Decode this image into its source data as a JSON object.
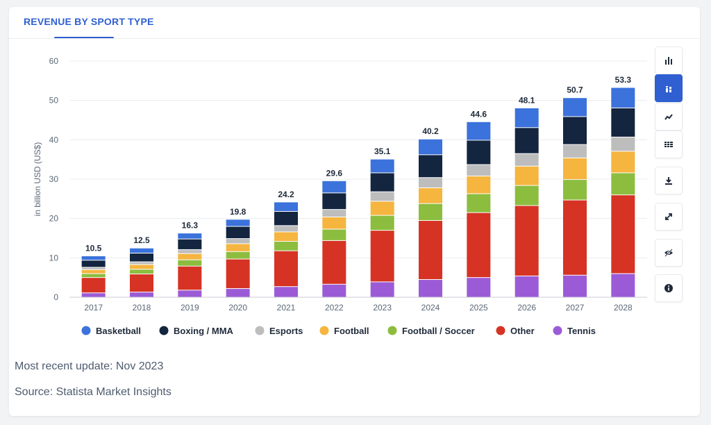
{
  "header": {
    "title": "REVENUE BY SPORT TYPE"
  },
  "footer": {
    "update": "Most recent update: Nov 2023",
    "source": "Source: Statista Market Insights"
  },
  "toolbar": {
    "icons": [
      "bar-chart-icon",
      "stacked-bar-icon",
      "line-chart-icon",
      "table-icon",
      "download-icon",
      "expand-icon",
      "hide-icon",
      "info-icon"
    ],
    "accent": "#2f5fd0"
  },
  "chart_data": {
    "type": "bar",
    "stacked": true,
    "title": "REVENUE BY SPORT TYPE",
    "ylabel": "in billion USD (US$)",
    "xlabel": "",
    "ylim": [
      0,
      60
    ],
    "yticks": [
      0,
      10,
      20,
      30,
      40,
      50,
      60
    ],
    "grid": true,
    "legend_position": "bottom",
    "categories": [
      "2017",
      "2018",
      "2019",
      "2020",
      "2021",
      "2022",
      "2023",
      "2024",
      "2025",
      "2026",
      "2027",
      "2028"
    ],
    "totals": [
      "10.5",
      "12.5",
      "16.3",
      "19.8",
      "24.2",
      "29.6",
      "35.1",
      "40.2",
      "44.6",
      "48.1",
      "50.7",
      "53.3"
    ],
    "series": [
      {
        "name": "Tennis",
        "color": "#9c5bd6",
        "values": [
          1.1,
          1.3,
          1.8,
          2.2,
          2.7,
          3.3,
          3.9,
          4.5,
          5.0,
          5.4,
          5.6,
          6.0
        ]
      },
      {
        "name": "Other",
        "color": "#d63324",
        "values": [
          3.9,
          4.6,
          6.1,
          7.5,
          9.1,
          11.1,
          13.1,
          15.0,
          16.5,
          17.9,
          19.1,
          20.0
        ]
      },
      {
        "name": "Football / Soccer",
        "color": "#8cbd3f",
        "values": [
          1.0,
          1.2,
          1.6,
          1.9,
          2.4,
          2.9,
          3.8,
          4.3,
          4.8,
          5.1,
          5.2,
          5.6
        ]
      },
      {
        "name": "Football",
        "color": "#f5b53f",
        "values": [
          1.0,
          1.2,
          1.6,
          2.0,
          2.4,
          3.1,
          3.6,
          4.0,
          4.5,
          4.9,
          5.5,
          5.5
        ]
      },
      {
        "name": "Esports",
        "color": "#bdbdbd",
        "values": [
          0.6,
          0.7,
          1.0,
          1.3,
          1.6,
          1.9,
          2.4,
          2.6,
          2.9,
          3.2,
          3.4,
          3.6
        ]
      },
      {
        "name": "Boxing / MMA",
        "color": "#13253f",
        "values": [
          1.8,
          2.2,
          2.7,
          3.1,
          3.6,
          4.2,
          4.8,
          5.8,
          6.2,
          6.6,
          7.1,
          7.4
        ]
      },
      {
        "name": "Basketball",
        "color": "#3b72db",
        "values": [
          1.1,
          1.3,
          1.5,
          1.8,
          2.4,
          3.1,
          3.5,
          4.0,
          4.7,
          5.0,
          4.8,
          5.2
        ]
      }
    ],
    "legend_order": [
      "Basketball",
      "Boxing / MMA",
      "Esports",
      "Football",
      "Football / Soccer",
      "Other",
      "Tennis"
    ]
  }
}
